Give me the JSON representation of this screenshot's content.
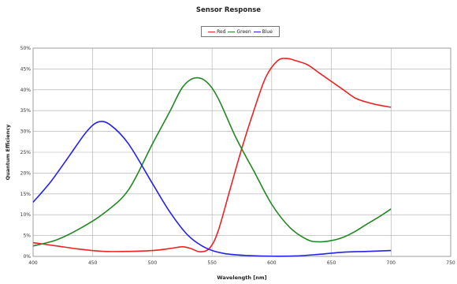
{
  "chart_data": {
    "type": "line",
    "title": "Sensor Response",
    "xlabel": "Wavelength [nm]",
    "ylabel": "Quantum Efficiency",
    "xlim": [
      400,
      750
    ],
    "ylim": [
      0,
      50
    ],
    "x_ticks": [
      "400",
      "450",
      "500",
      "550",
      "600",
      "650",
      "700",
      "750"
    ],
    "y_ticks": [
      "0%",
      "5%",
      "10%",
      "15%",
      "20%",
      "25%",
      "30%",
      "35%",
      "40%",
      "45%",
      "50%"
    ],
    "grid": true,
    "legend_position": "top-center",
    "series": [
      {
        "name": "Red",
        "color": "#ee2222",
        "x": [
          400,
          420,
          440,
          460,
          480,
          500,
          515,
          525,
          532,
          540,
          548,
          555,
          565,
          575,
          585,
          595,
          605,
          613,
          620,
          630,
          640,
          650,
          660,
          670,
          680,
          690,
          700
        ],
        "y": [
          3.3,
          2.5,
          1.7,
          1.2,
          1.2,
          1.4,
          1.9,
          2.3,
          1.9,
          1.1,
          2.0,
          6.0,
          16.0,
          26.0,
          35.0,
          43.0,
          47.0,
          47.5,
          47.0,
          46.0,
          44.0,
          42.0,
          40.0,
          38.0,
          37.0,
          36.3,
          35.8
        ]
      },
      {
        "name": "Green",
        "color": "#228822",
        "x": [
          400,
          420,
          440,
          460,
          480,
          500,
          515,
          525,
          535,
          545,
          555,
          570,
          585,
          600,
          615,
          630,
          640,
          650,
          660,
          670,
          680,
          690,
          700
        ],
        "y": [
          2.5,
          4.0,
          6.8,
          10.5,
          16.0,
          27.0,
          35.0,
          40.5,
          42.8,
          42.0,
          38.0,
          28.5,
          20.5,
          12.5,
          7.0,
          4.0,
          3.5,
          3.8,
          4.6,
          6.0,
          7.8,
          9.5,
          11.4
        ]
      },
      {
        "name": "Blue",
        "color": "#2222ee",
        "x": [
          400,
          415,
          430,
          445,
          455,
          465,
          480,
          500,
          515,
          530,
          545,
          560,
          580,
          600,
          620,
          640,
          660,
          680,
          700
        ],
        "y": [
          13.0,
          18.0,
          24.0,
          30.0,
          32.3,
          31.5,
          27.0,
          17.5,
          10.5,
          5.0,
          2.0,
          0.7,
          0.2,
          0.05,
          0.1,
          0.5,
          1.0,
          1.2,
          1.4
        ]
      }
    ]
  }
}
